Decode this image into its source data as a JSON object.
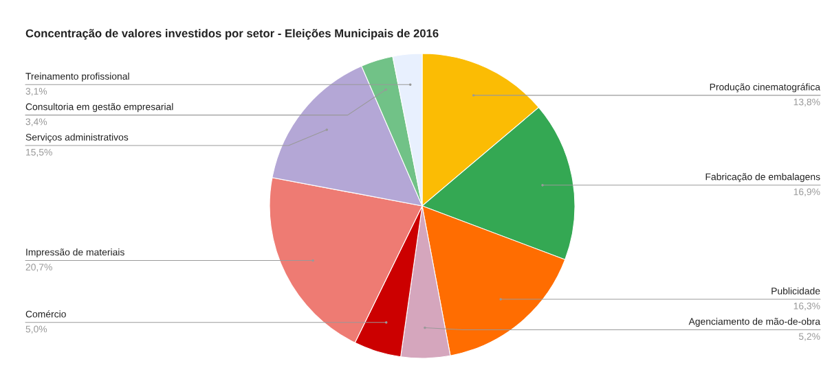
{
  "chart_data": {
    "type": "pie",
    "title": "Concentração de valores investidos por setor - Eleições Municipais de 2016",
    "categories": [
      "Produção cinematográfica",
      "Fabricação de embalagens",
      "Publicidade",
      "Agenciamento de mão-de-obra",
      "Comércio",
      "Impressão de materiais",
      "Serviços administrativos",
      "Consultoria em gestão empresarial",
      "Treinamento profissional"
    ],
    "values": [
      13.8,
      16.9,
      16.3,
      5.2,
      5.0,
      20.7,
      15.5,
      3.4,
      3.1
    ],
    "value_labels": [
      "13,8%",
      "16,9%",
      "16,3%",
      "5,2%",
      "5,0%",
      "20,7%",
      "15,5%",
      "3,4%",
      "3,1%"
    ],
    "colors": [
      "#fbbc04",
      "#34a853",
      "#ff6d01",
      "#d5a6bd",
      "#cc0000",
      "#ee7b73",
      "#b4a7d6",
      "#71c287",
      "#e8f0fe"
    ]
  }
}
